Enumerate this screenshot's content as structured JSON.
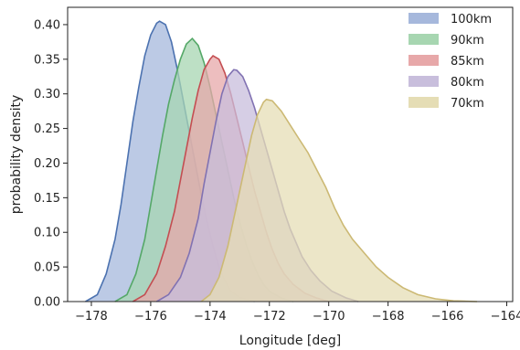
{
  "chart_data": {
    "type": "area",
    "title": "",
    "xlabel": "Longitude [deg]",
    "ylabel": "probability density",
    "xlim": [
      -178.8,
      -163.8
    ],
    "ylim": [
      0,
      0.425
    ],
    "xticks": [
      -178,
      -176,
      -174,
      -172,
      -170,
      -168,
      -166,
      -164
    ],
    "xtick_labels": [
      "−178",
      "−176",
      "−174",
      "−172",
      "−170",
      "−168",
      "−166",
      "−164"
    ],
    "yticks": [
      0.0,
      0.05,
      0.1,
      0.15,
      0.2,
      0.25,
      0.3,
      0.35,
      0.4
    ],
    "ytick_labels": [
      "0.00",
      "0.05",
      "0.10",
      "0.15",
      "0.20",
      "0.25",
      "0.30",
      "0.35",
      "0.40"
    ],
    "grid": false,
    "legend_position": "top-right",
    "series": [
      {
        "name": "100km",
        "fill": "#a6b8dc",
        "line": "#4c72b0",
        "points": [
          [
            -178.2,
            0.0
          ],
          [
            -177.8,
            0.01
          ],
          [
            -177.5,
            0.04
          ],
          [
            -177.2,
            0.09
          ],
          [
            -177.0,
            0.14
          ],
          [
            -176.8,
            0.2
          ],
          [
            -176.6,
            0.26
          ],
          [
            -176.4,
            0.31
          ],
          [
            -176.2,
            0.355
          ],
          [
            -176.0,
            0.385
          ],
          [
            -175.8,
            0.402
          ],
          [
            -175.7,
            0.405
          ],
          [
            -175.5,
            0.4
          ],
          [
            -175.3,
            0.375
          ],
          [
            -175.1,
            0.335
          ],
          [
            -174.9,
            0.29
          ],
          [
            -174.7,
            0.245
          ],
          [
            -174.5,
            0.2
          ],
          [
            -174.3,
            0.155
          ],
          [
            -174.1,
            0.115
          ],
          [
            -173.9,
            0.08
          ],
          [
            -173.7,
            0.05
          ],
          [
            -173.5,
            0.03
          ],
          [
            -173.3,
            0.015
          ],
          [
            -173.0,
            0.006
          ],
          [
            -172.5,
            0.0
          ]
        ]
      },
      {
        "name": "90km",
        "fill": "#a7d6b1",
        "line": "#55a868",
        "points": [
          [
            -177.2,
            0.0
          ],
          [
            -176.8,
            0.01
          ],
          [
            -176.5,
            0.04
          ],
          [
            -176.2,
            0.09
          ],
          [
            -176.0,
            0.14
          ],
          [
            -175.8,
            0.19
          ],
          [
            -175.6,
            0.24
          ],
          [
            -175.4,
            0.285
          ],
          [
            -175.2,
            0.32
          ],
          [
            -175.0,
            0.35
          ],
          [
            -174.8,
            0.372
          ],
          [
            -174.6,
            0.38
          ],
          [
            -174.4,
            0.37
          ],
          [
            -174.2,
            0.345
          ],
          [
            -174.0,
            0.31
          ],
          [
            -173.8,
            0.27
          ],
          [
            -173.6,
            0.23
          ],
          [
            -173.4,
            0.19
          ],
          [
            -173.2,
            0.15
          ],
          [
            -173.0,
            0.115
          ],
          [
            -172.8,
            0.085
          ],
          [
            -172.6,
            0.06
          ],
          [
            -172.4,
            0.04
          ],
          [
            -172.2,
            0.025
          ],
          [
            -172.0,
            0.015
          ],
          [
            -171.6,
            0.005
          ],
          [
            -171.2,
            0.0
          ]
        ]
      },
      {
        "name": "85km",
        "fill": "#e7a8a9",
        "line": "#c44e52",
        "points": [
          [
            -176.6,
            0.0
          ],
          [
            -176.2,
            0.01
          ],
          [
            -175.8,
            0.04
          ],
          [
            -175.5,
            0.08
          ],
          [
            -175.2,
            0.13
          ],
          [
            -175.0,
            0.175
          ],
          [
            -174.8,
            0.22
          ],
          [
            -174.6,
            0.265
          ],
          [
            -174.4,
            0.305
          ],
          [
            -174.2,
            0.335
          ],
          [
            -174.0,
            0.35
          ],
          [
            -173.9,
            0.355
          ],
          [
            -173.7,
            0.35
          ],
          [
            -173.5,
            0.33
          ],
          [
            -173.3,
            0.3
          ],
          [
            -173.1,
            0.265
          ],
          [
            -172.9,
            0.23
          ],
          [
            -172.7,
            0.195
          ],
          [
            -172.5,
            0.16
          ],
          [
            -172.3,
            0.13
          ],
          [
            -172.1,
            0.1
          ],
          [
            -171.9,
            0.075
          ],
          [
            -171.7,
            0.055
          ],
          [
            -171.5,
            0.04
          ],
          [
            -171.2,
            0.025
          ],
          [
            -170.8,
            0.012
          ],
          [
            -170.4,
            0.005
          ],
          [
            -170.0,
            0.0
          ]
        ]
      },
      {
        "name": "80km",
        "fill": "#c8bedc",
        "line": "#8172b2",
        "points": [
          [
            -175.8,
            0.0
          ],
          [
            -175.4,
            0.01
          ],
          [
            -175.0,
            0.035
          ],
          [
            -174.7,
            0.07
          ],
          [
            -174.4,
            0.12
          ],
          [
            -174.2,
            0.17
          ],
          [
            -174.0,
            0.215
          ],
          [
            -173.8,
            0.26
          ],
          [
            -173.6,
            0.3
          ],
          [
            -173.4,
            0.325
          ],
          [
            -173.2,
            0.335
          ],
          [
            -173.1,
            0.334
          ],
          [
            -172.9,
            0.325
          ],
          [
            -172.7,
            0.305
          ],
          [
            -172.5,
            0.28
          ],
          [
            -172.3,
            0.25
          ],
          [
            -172.1,
            0.22
          ],
          [
            -171.9,
            0.19
          ],
          [
            -171.7,
            0.16
          ],
          [
            -171.5,
            0.13
          ],
          [
            -171.3,
            0.105
          ],
          [
            -171.1,
            0.085
          ],
          [
            -170.9,
            0.065
          ],
          [
            -170.6,
            0.045
          ],
          [
            -170.3,
            0.03
          ],
          [
            -169.9,
            0.015
          ],
          [
            -169.4,
            0.005
          ],
          [
            -169.0,
            0.0
          ]
        ]
      },
      {
        "name": "70km",
        "fill": "#e5ddb5",
        "line": "#ccb974",
        "points": [
          [
            -174.3,
            0.0
          ],
          [
            -174.0,
            0.01
          ],
          [
            -173.7,
            0.035
          ],
          [
            -173.4,
            0.08
          ],
          [
            -173.1,
            0.14
          ],
          [
            -172.8,
            0.2
          ],
          [
            -172.6,
            0.24
          ],
          [
            -172.4,
            0.27
          ],
          [
            -172.2,
            0.288
          ],
          [
            -172.1,
            0.292
          ],
          [
            -171.9,
            0.29
          ],
          [
            -171.6,
            0.275
          ],
          [
            -171.3,
            0.255
          ],
          [
            -171.0,
            0.235
          ],
          [
            -170.7,
            0.215
          ],
          [
            -170.4,
            0.19
          ],
          [
            -170.1,
            0.165
          ],
          [
            -169.8,
            0.135
          ],
          [
            -169.5,
            0.11
          ],
          [
            -169.2,
            0.09
          ],
          [
            -168.8,
            0.07
          ],
          [
            -168.4,
            0.05
          ],
          [
            -168.0,
            0.035
          ],
          [
            -167.5,
            0.02
          ],
          [
            -167.0,
            0.01
          ],
          [
            -166.4,
            0.004
          ],
          [
            -165.8,
            0.001
          ],
          [
            -165.0,
            0.0
          ]
        ]
      }
    ]
  }
}
